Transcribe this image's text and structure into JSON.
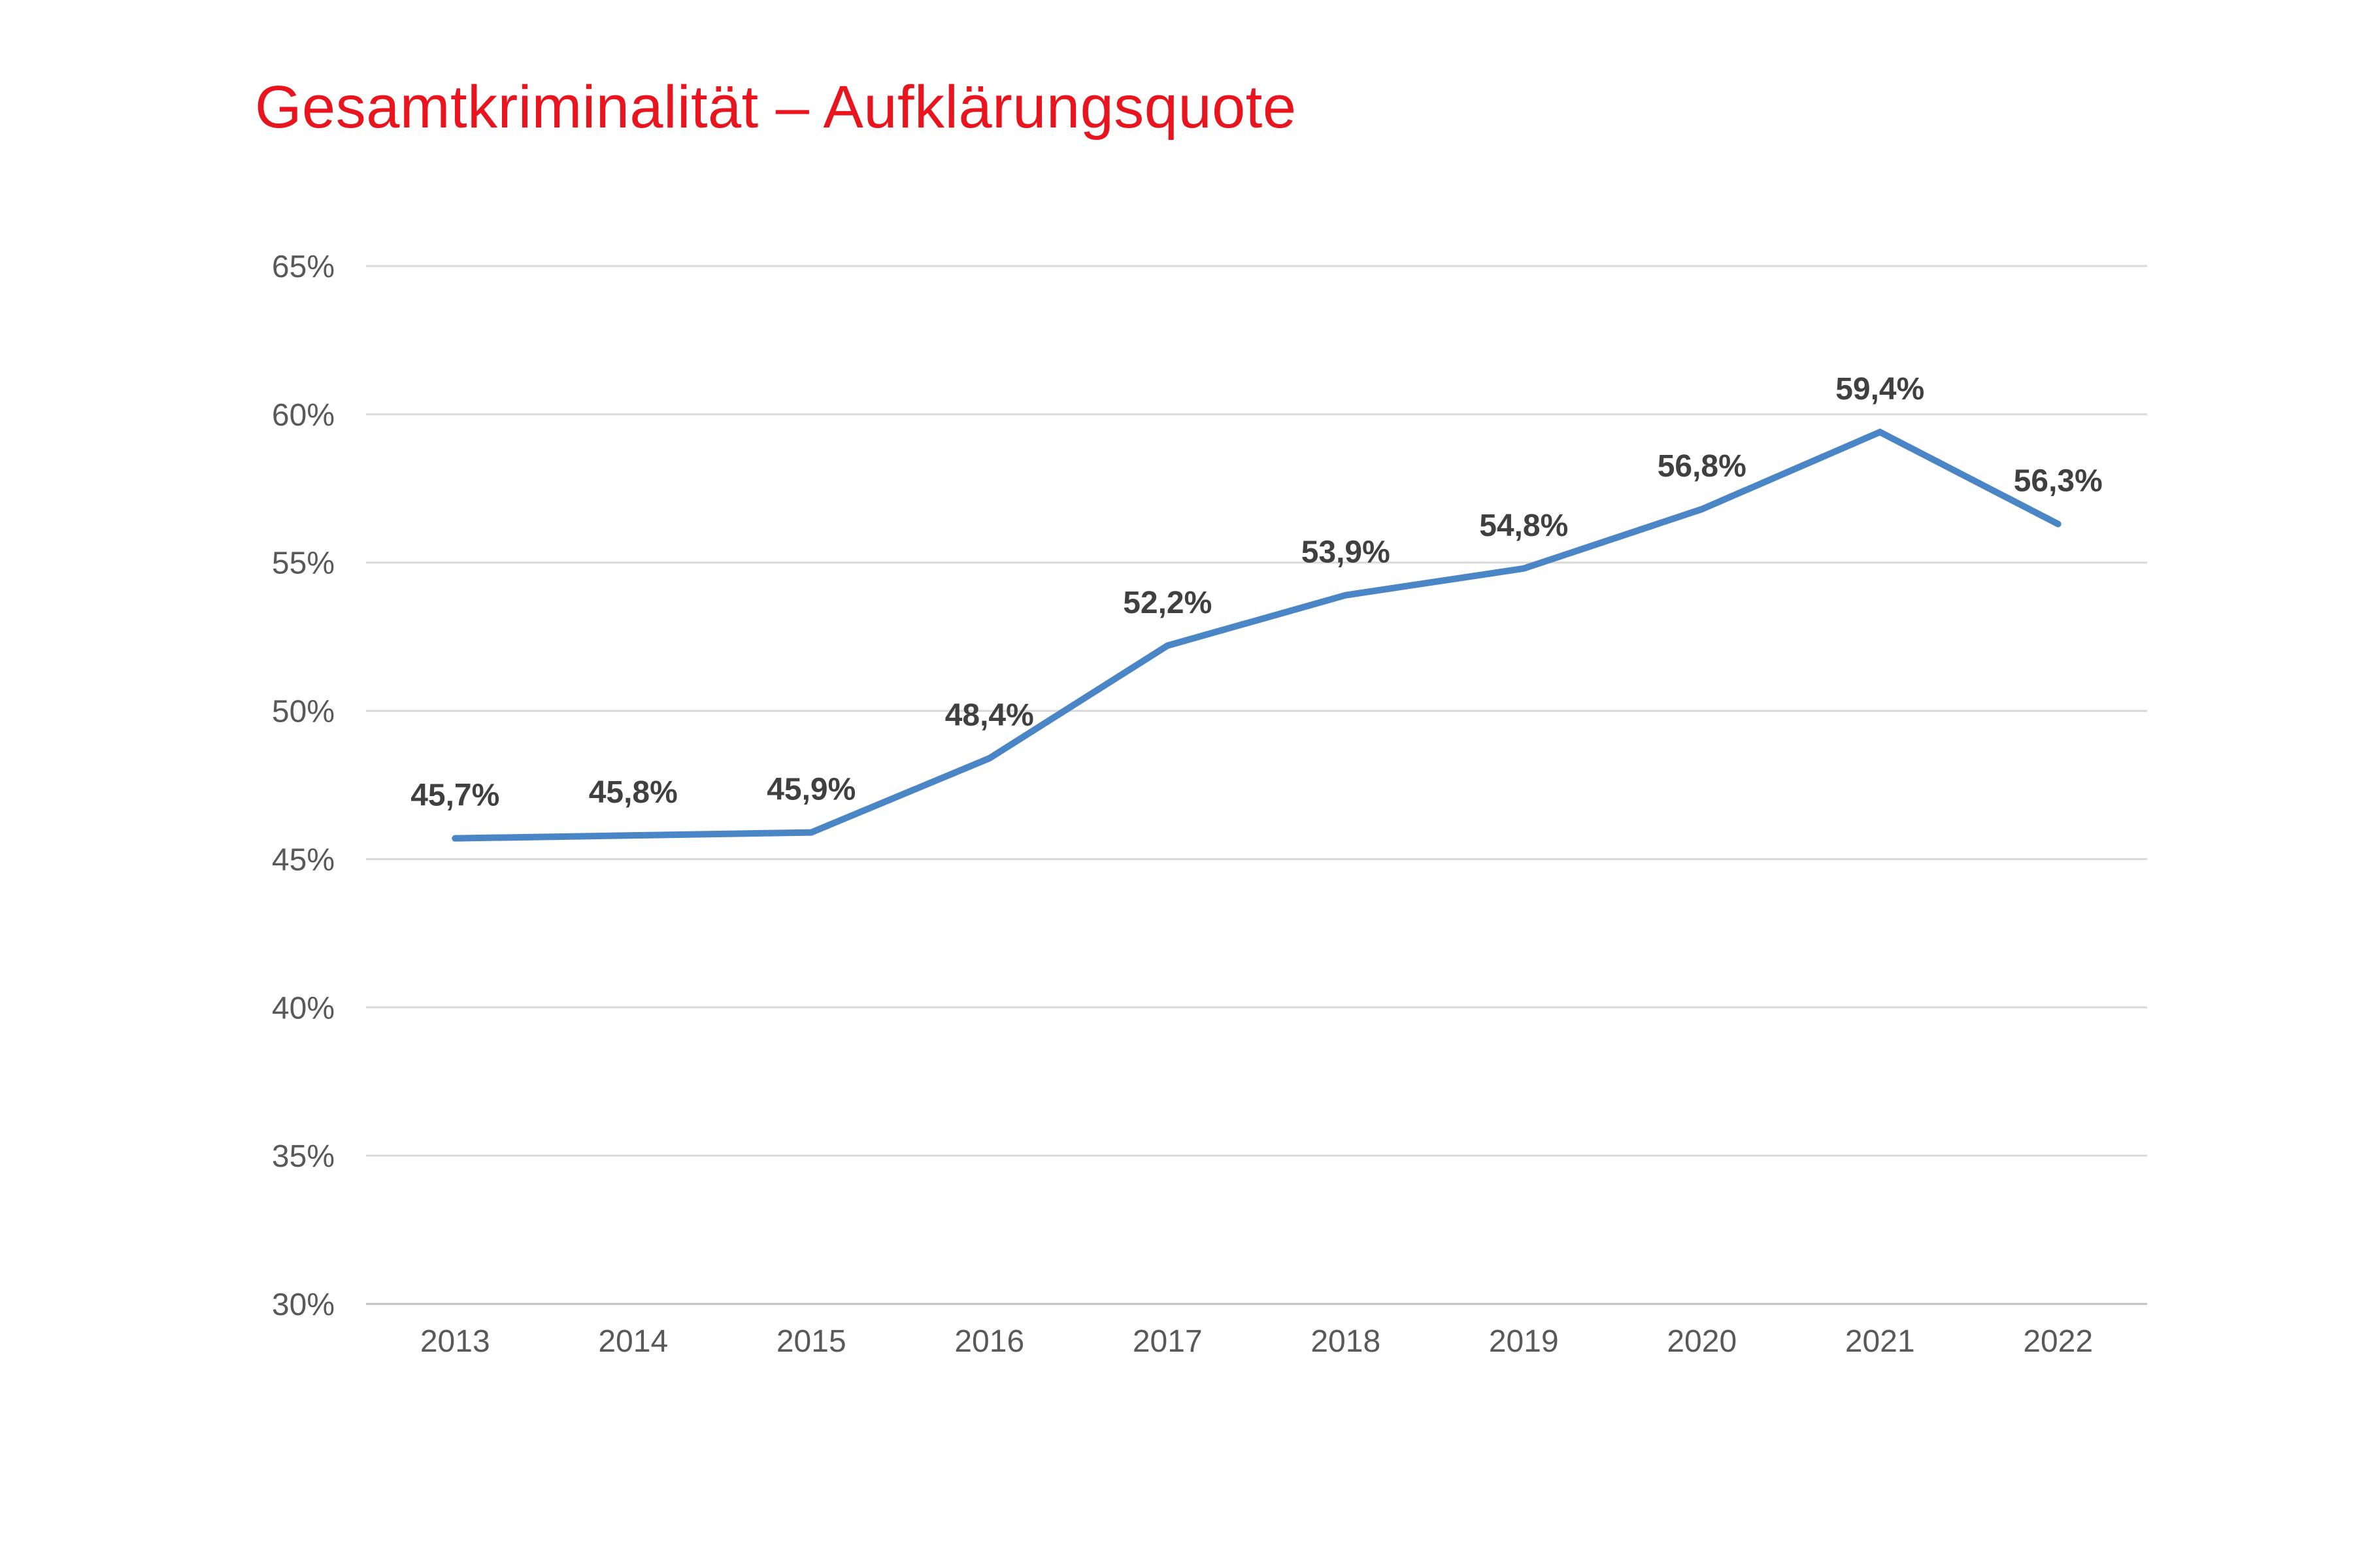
{
  "colors": {
    "title": "#e8141e",
    "series_line": "#4a86c5"
  },
  "chart_data": {
    "type": "line",
    "title": "Gesamtkriminalität – Aufklärungsquote",
    "xlabel": "",
    "ylabel": "",
    "categories": [
      "2013",
      "2014",
      "2015",
      "2016",
      "2017",
      "2018",
      "2019",
      "2020",
      "2021",
      "2022"
    ],
    "series": [
      {
        "values": [
          45.7,
          45.8,
          45.9,
          48.4,
          52.2,
          53.9,
          54.8,
          56.8,
          59.4,
          56.3
        ],
        "data_labels": [
          "45,7%",
          "45,8%",
          "45,9%",
          "48,4%",
          "52,2%",
          "53,9%",
          "54,8%",
          "56,8%",
          "59,4%",
          "56,3%"
        ]
      }
    ],
    "ylim": [
      30,
      65
    ],
    "y_ticks": [
      30,
      35,
      40,
      45,
      50,
      55,
      60,
      65
    ],
    "y_tick_labels": [
      "30%",
      "35%",
      "40%",
      "45%",
      "50%",
      "55%",
      "60%",
      "65%"
    ],
    "grid": true,
    "legend": "none"
  }
}
